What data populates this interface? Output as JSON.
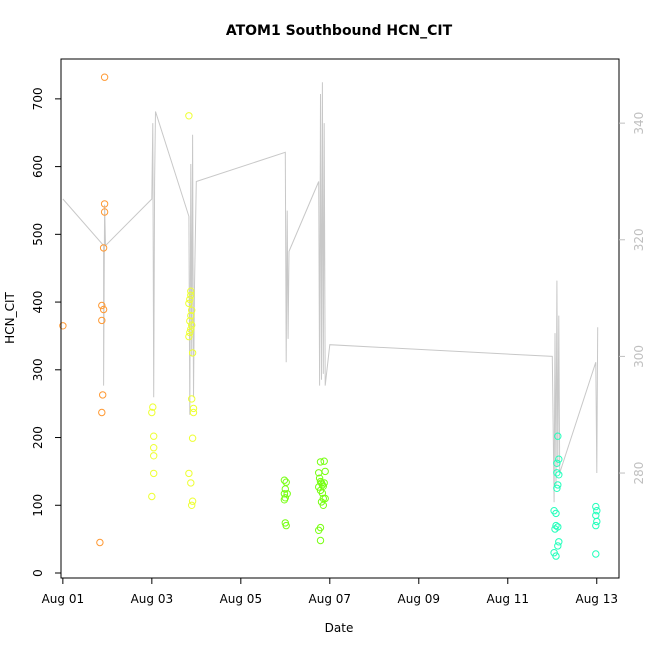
{
  "chart_data": {
    "type": "scatter",
    "title": "ATOM1 Southbound HCN_CIT",
    "xlabel": "Date",
    "ylabel": "HCN_CIT",
    "x_ticks": [
      "Aug 01",
      "Aug 03",
      "Aug 05",
      "Aug 07",
      "Aug 09",
      "Aug 11",
      "Aug 13"
    ],
    "xlim": [
      "2016-07-31T23:00",
      "2016-08-13T12:00"
    ],
    "ylim": [
      0,
      750
    ],
    "y_ticks": [
      0,
      100,
      200,
      300,
      400,
      500,
      600,
      700
    ],
    "y2lim": [
      262,
      351
    ],
    "y2_ticks": [
      280,
      300,
      320,
      340
    ],
    "colors": {
      "Aug 01": "#ff9933",
      "Aug 03": "#eeff33",
      "Aug 05": "#77ff11",
      "Aug 12": "#22ffbb",
      "line": "#c8c8c8"
    },
    "series": [
      {
        "points": [
          {
            "x": "2016-08-01T00:00",
            "y": 365
          },
          {
            "x": "2016-08-01T20:00",
            "y": 45
          },
          {
            "x": "2016-08-01T21:00",
            "y": 237
          },
          {
            "x": "2016-08-01T21:30",
            "y": 263
          },
          {
            "x": "2016-08-01T21:00",
            "y": 373
          },
          {
            "x": "2016-08-01T21:00",
            "y": 395
          },
          {
            "x": "2016-08-01T22:00",
            "y": 389
          },
          {
            "x": "2016-08-01T22:00",
            "y": 480
          },
          {
            "x": "2016-08-01T22:30",
            "y": 533
          },
          {
            "x": "2016-08-01T22:30",
            "y": 545
          },
          {
            "x": "2016-08-01T22:30",
            "y": 732
          }
        ]
      },
      {
        "points": [
          {
            "x": "2016-08-03T00:00",
            "y": 113
          },
          {
            "x": "2016-08-03T01:00",
            "y": 147
          },
          {
            "x": "2016-08-03T01:00",
            "y": 173
          },
          {
            "x": "2016-08-03T01:00",
            "y": 185
          },
          {
            "x": "2016-08-03T01:00",
            "y": 202
          },
          {
            "x": "2016-08-03T00:00",
            "y": 237
          },
          {
            "x": "2016-08-03T00:30",
            "y": 245
          },
          {
            "x": "2016-08-03T20:00",
            "y": 147
          },
          {
            "x": "2016-08-03T21:00",
            "y": 133
          },
          {
            "x": "2016-08-03T21:30",
            "y": 100
          },
          {
            "x": "2016-08-03T22:00",
            "y": 106
          },
          {
            "x": "2016-08-03T22:00",
            "y": 199
          },
          {
            "x": "2016-08-03T22:30",
            "y": 237
          },
          {
            "x": "2016-08-03T22:30",
            "y": 243
          },
          {
            "x": "2016-08-03T21:30",
            "y": 257
          },
          {
            "x": "2016-08-03T22:00",
            "y": 325
          },
          {
            "x": "2016-08-03T20:00",
            "y": 349
          },
          {
            "x": "2016-08-03T20:30",
            "y": 355
          },
          {
            "x": "2016-08-03T21:00",
            "y": 360
          },
          {
            "x": "2016-08-03T21:30",
            "y": 366
          },
          {
            "x": "2016-08-03T20:30",
            "y": 372
          },
          {
            "x": "2016-08-03T21:00",
            "y": 380
          },
          {
            "x": "2016-08-03T21:30",
            "y": 388
          },
          {
            "x": "2016-08-03T20:00",
            "y": 398
          },
          {
            "x": "2016-08-03T20:30",
            "y": 404
          },
          {
            "x": "2016-08-03T21:00",
            "y": 410
          },
          {
            "x": "2016-08-03T21:00",
            "y": 416
          },
          {
            "x": "2016-08-03T20:00",
            "y": 675
          }
        ]
      },
      {
        "points": [
          {
            "x": "2016-08-05T23:30",
            "y": 137
          },
          {
            "x": "2016-08-06T00:00",
            "y": 124
          },
          {
            "x": "2016-08-05T23:30",
            "y": 117
          },
          {
            "x": "2016-08-06T00:00",
            "y": 111
          },
          {
            "x": "2016-08-05T23:30",
            "y": 108
          },
          {
            "x": "2016-08-06T00:30",
            "y": 134
          },
          {
            "x": "2016-08-06T01:00",
            "y": 117
          },
          {
            "x": "2016-08-06T00:00",
            "y": 74
          },
          {
            "x": "2016-08-06T00:30",
            "y": 70
          },
          {
            "x": "2016-08-06T18:00",
            "y": 148
          },
          {
            "x": "2016-08-06T19:00",
            "y": 164
          },
          {
            "x": "2016-08-06T21:00",
            "y": 165
          },
          {
            "x": "2016-08-06T18:30",
            "y": 140
          },
          {
            "x": "2016-08-06T19:00",
            "y": 135
          },
          {
            "x": "2016-08-06T19:30",
            "y": 133
          },
          {
            "x": "2016-08-06T20:00",
            "y": 130
          },
          {
            "x": "2016-08-06T20:30",
            "y": 128
          },
          {
            "x": "2016-08-06T21:00",
            "y": 133
          },
          {
            "x": "2016-08-06T18:00",
            "y": 127
          },
          {
            "x": "2016-08-06T19:00",
            "y": 122
          },
          {
            "x": "2016-08-06T20:00",
            "y": 118
          },
          {
            "x": "2016-08-06T21:30",
            "y": 150
          },
          {
            "x": "2016-08-06T20:30",
            "y": 110
          },
          {
            "x": "2016-08-06T21:30",
            "y": 110
          },
          {
            "x": "2016-08-06T19:30",
            "y": 105
          },
          {
            "x": "2016-08-06T20:30",
            "y": 100
          },
          {
            "x": "2016-08-06T19:00",
            "y": 67
          },
          {
            "x": "2016-08-06T18:00",
            "y": 63
          },
          {
            "x": "2016-08-06T19:00",
            "y": 48
          }
        ]
      },
      {
        "points": [
          {
            "x": "2016-08-12T01:00",
            "y": 30
          },
          {
            "x": "2016-08-12T02:00",
            "y": 25
          },
          {
            "x": "2016-08-12T03:00",
            "y": 40
          },
          {
            "x": "2016-08-12T03:30",
            "y": 46
          },
          {
            "x": "2016-08-12T01:30",
            "y": 65
          },
          {
            "x": "2016-08-12T02:00",
            "y": 70
          },
          {
            "x": "2016-08-12T03:00",
            "y": 68
          },
          {
            "x": "2016-08-12T02:00",
            "y": 88
          },
          {
            "x": "2016-08-12T01:00",
            "y": 92
          },
          {
            "x": "2016-08-12T02:30",
            "y": 125
          },
          {
            "x": "2016-08-12T03:00",
            "y": 130
          },
          {
            "x": "2016-08-12T02:30",
            "y": 148
          },
          {
            "x": "2016-08-12T03:30",
            "y": 145
          },
          {
            "x": "2016-08-12T02:30",
            "y": 162
          },
          {
            "x": "2016-08-12T03:30",
            "y": 168
          },
          {
            "x": "2016-08-12T03:00",
            "y": 202
          },
          {
            "x": "2016-08-12T23:30",
            "y": 28
          },
          {
            "x": "2016-08-12T23:30",
            "y": 70
          },
          {
            "x": "2016-08-13T00:00",
            "y": 76
          },
          {
            "x": "2016-08-12T23:30",
            "y": 85
          },
          {
            "x": "2016-08-13T00:00",
            "y": 92
          },
          {
            "x": "2016-08-12T23:30",
            "y": 98
          }
        ]
      }
    ],
    "line_points": [
      [
        "2016-08-01T00:00",
        327
      ],
      [
        "2016-08-01T22:00",
        319
      ],
      [
        "2016-08-01T22:00",
        295
      ],
      [
        "2016-08-01T22:30",
        326
      ],
      [
        "2016-08-01T23:00",
        319
      ],
      [
        "2016-08-03T00:00",
        327
      ],
      [
        "2016-08-03T00:30",
        340
      ],
      [
        "2016-08-03T01:00",
        293
      ],
      [
        "2016-08-03T01:30",
        330
      ],
      [
        "2016-08-03T02:00",
        342
      ],
      [
        "2016-08-03T20:00",
        324
      ],
      [
        "2016-08-03T20:30",
        290
      ],
      [
        "2016-08-03T21:00",
        333
      ],
      [
        "2016-08-03T21:30",
        300
      ],
      [
        "2016-08-03T22:00",
        338
      ],
      [
        "2016-08-03T22:30",
        293
      ],
      [
        "2016-08-03T23:00",
        312
      ],
      [
        "2016-08-04T00:00",
        330
      ],
      [
        "2016-08-06T00:00",
        335
      ],
      [
        "2016-08-06T00:30",
        299
      ],
      [
        "2016-08-06T01:00",
        325
      ],
      [
        "2016-08-06T01:30",
        303
      ],
      [
        "2016-08-06T02:00",
        318
      ],
      [
        "2016-08-06T18:00",
        330
      ],
      [
        "2016-08-06T18:30",
        295
      ],
      [
        "2016-08-06T19:00",
        345
      ],
      [
        "2016-08-06T19:30",
        296
      ],
      [
        "2016-08-06T20:00",
        347
      ],
      [
        "2016-08-06T20:30",
        297
      ],
      [
        "2016-08-06T21:00",
        340
      ],
      [
        "2016-08-06T21:30",
        295
      ],
      [
        "2016-08-07T00:00",
        302
      ],
      [
        "2016-08-12T00:00",
        300
      ],
      [
        "2016-08-12T01:00",
        275
      ],
      [
        "2016-08-12T01:30",
        304
      ],
      [
        "2016-08-12T02:00",
        278
      ],
      [
        "2016-08-12T02:30",
        313
      ],
      [
        "2016-08-12T03:00",
        281
      ],
      [
        "2016-08-12T03:30",
        307
      ],
      [
        "2016-08-12T04:00",
        280
      ],
      [
        "2016-08-12T23:30",
        299
      ],
      [
        "2016-08-13T00:00",
        280
      ],
      [
        "2016-08-13T00:30",
        305
      ]
    ]
  }
}
